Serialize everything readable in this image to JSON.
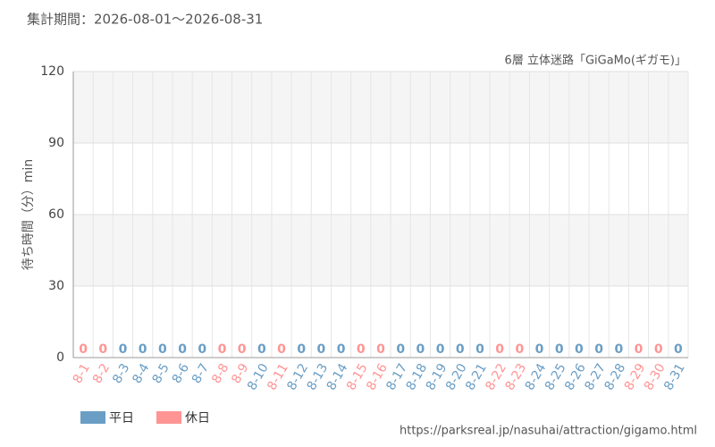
{
  "chart_data": {
    "type": "bar",
    "title": "集計期間：2026-08-01～2026-08-31",
    "subtitle": "6層 立体迷路「GiGaMo(ギガモ)」",
    "y_label": "待ち時間（分）min",
    "source": "https://parksreal.jp/nasuhai/attraction/gigamo.html",
    "categories": [
      "8-1",
      "8-2",
      "8-3",
      "8-4",
      "8-5",
      "8-6",
      "8-7",
      "8-8",
      "8-9",
      "8-10",
      "8-11",
      "8-12",
      "8-13",
      "8-14",
      "8-15",
      "8-16",
      "8-17",
      "8-18",
      "8-19",
      "8-20",
      "8-21",
      "8-22",
      "8-23",
      "8-24",
      "8-25",
      "8-26",
      "8-27",
      "8-28",
      "8-29",
      "8-30",
      "8-31"
    ],
    "series": [
      {
        "name": "平日",
        "color": "#6a9ec5",
        "values": [
          null,
          null,
          0,
          0,
          0,
          0,
          0,
          null,
          null,
          0,
          null,
          0,
          0,
          0,
          null,
          null,
          0,
          0,
          0,
          0,
          0,
          null,
          null,
          0,
          0,
          0,
          0,
          0,
          null,
          null,
          0
        ]
      },
      {
        "name": "休日",
        "color": "#ff9494",
        "values": [
          0,
          0,
          null,
          null,
          null,
          null,
          null,
          0,
          0,
          null,
          0,
          null,
          null,
          null,
          0,
          0,
          null,
          null,
          null,
          null,
          null,
          0,
          0,
          null,
          null,
          null,
          null,
          null,
          0,
          0,
          null
        ]
      }
    ],
    "ylim": [
      0,
      120
    ],
    "yticks": [
      0,
      30,
      60,
      90,
      120
    ],
    "grid": true
  }
}
